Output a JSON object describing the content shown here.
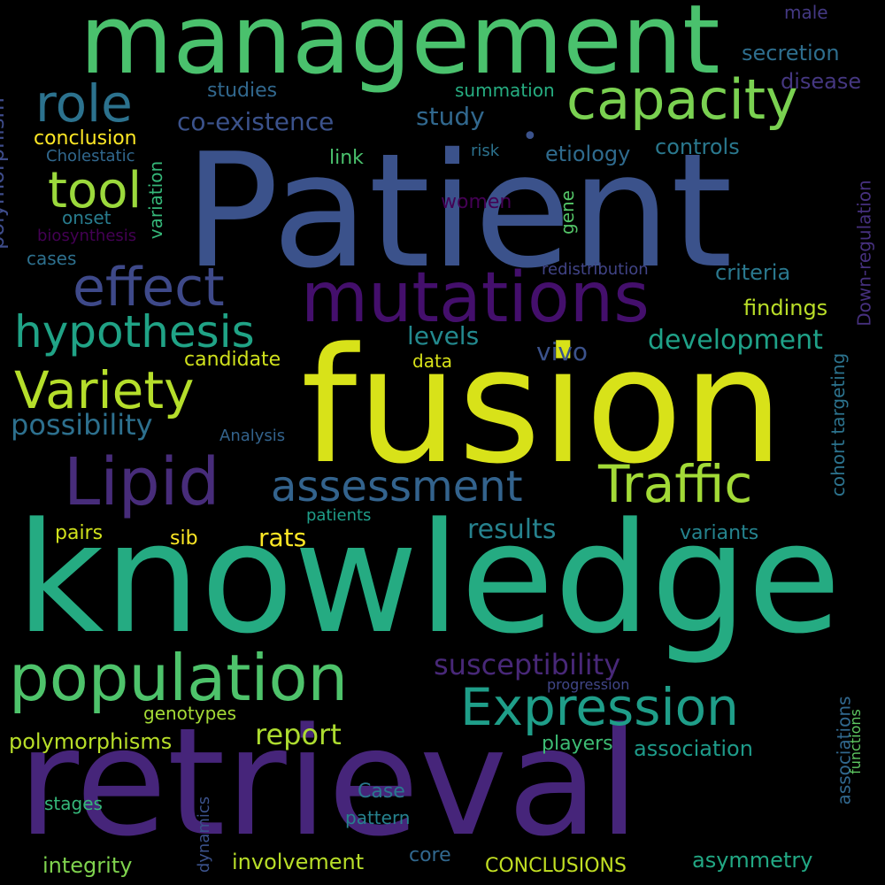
{
  "background": "#000000",
  "words": [
    {
      "key": "patient",
      "text": "Patient",
      "color": "#3b528b"
    },
    {
      "key": "knowledge",
      "text": "knowledge",
      "color": "#25ab82"
    },
    {
      "key": "fusion",
      "text": "fusion",
      "color": "#d8e219"
    },
    {
      "key": "retrieval",
      "text": "retrieval",
      "color": "#46257a"
    },
    {
      "key": "management",
      "text": "management",
      "color": "#4ac16d"
    },
    {
      "key": "mutations",
      "text": "mutations",
      "color": "#440f6c"
    },
    {
      "key": "population",
      "text": "population",
      "color": "#4ec36b"
    },
    {
      "key": "lipid",
      "text": "Lipid",
      "color": "#472c7a"
    },
    {
      "key": "traffic",
      "text": "Traffic",
      "color": "#a2da37"
    },
    {
      "key": "expression",
      "text": "Expression",
      "color": "#1f9e89"
    },
    {
      "key": "capacity",
      "text": "capacity",
      "color": "#7ad151"
    },
    {
      "key": "effect",
      "text": "effect",
      "color": "#3e4989"
    },
    {
      "key": "variety",
      "text": "Variety",
      "color": "#b5de2b"
    },
    {
      "key": "role",
      "text": "role",
      "color": "#2c728e"
    },
    {
      "key": "tool",
      "text": "tool",
      "color": "#9bd93c"
    },
    {
      "key": "hypothesis",
      "text": "hypothesis",
      "color": "#20a386"
    },
    {
      "key": "assessment",
      "text": "assessment",
      "color": "#33638d"
    },
    {
      "key": "susceptibility",
      "text": "susceptibility",
      "color": "#482878"
    },
    {
      "key": "possibility",
      "text": "possibility",
      "color": "#2d708e"
    },
    {
      "key": "development",
      "text": "development",
      "color": "#1fa188"
    },
    {
      "key": "results",
      "text": "results",
      "color": "#26828e"
    },
    {
      "key": "report",
      "text": "report",
      "color": "#addc30"
    },
    {
      "key": "co-existence",
      "text": "co-existence",
      "color": "#3b528b"
    },
    {
      "key": "study",
      "text": "study",
      "color": "#31688e"
    },
    {
      "key": "rats",
      "text": "rats",
      "color": "#fde725"
    },
    {
      "key": "levels",
      "text": "levels",
      "color": "#23898e"
    },
    {
      "key": "vivo",
      "text": "vivo",
      "color": "#3b528b"
    },
    {
      "key": "polymorphisms",
      "text": "polymorphisms",
      "color": "#b8de29"
    },
    {
      "key": "findings",
      "text": "findings",
      "color": "#bade28"
    },
    {
      "key": "criteria",
      "text": "criteria",
      "color": "#2a788e"
    },
    {
      "key": "association",
      "text": "association",
      "color": "#1e9b8a"
    },
    {
      "key": "asymmetry",
      "text": "asymmetry",
      "color": "#22a884"
    },
    {
      "key": "integrity",
      "text": "integrity",
      "color": "#7fd34e"
    },
    {
      "key": "involvement",
      "text": "involvement",
      "color": "#b8de29"
    },
    {
      "key": "conclusions",
      "text": "CONCLUSIONS",
      "color": "#c2df23"
    },
    {
      "key": "variants",
      "text": "variants",
      "color": "#25838e"
    },
    {
      "key": "candidate",
      "text": "candidate",
      "color": "#d0e11c"
    },
    {
      "key": "conclusion",
      "text": "conclusion",
      "color": "#fde725"
    },
    {
      "key": "etiology",
      "text": "etiology",
      "color": "#2f6b8e"
    },
    {
      "key": "controls",
      "text": "controls",
      "color": "#2a788e"
    },
    {
      "key": "secretion",
      "text": "secretion",
      "color": "#2e6e8e"
    },
    {
      "key": "disease",
      "text": "disease",
      "color": "#453781"
    },
    {
      "key": "players",
      "text": "players",
      "color": "#3dbc74"
    },
    {
      "key": "core",
      "text": "core",
      "color": "#31688e"
    },
    {
      "key": "case",
      "text": "Case",
      "color": "#2a788e"
    },
    {
      "key": "pattern",
      "text": "pattern",
      "color": "#26828e"
    },
    {
      "key": "pairs",
      "text": "pairs",
      "color": "#d0e11c"
    },
    {
      "key": "sib",
      "text": "sib",
      "color": "#fde725"
    },
    {
      "key": "data",
      "text": "data",
      "color": "#d8e219"
    },
    {
      "key": "link",
      "text": "link",
      "color": "#4ac16d"
    },
    {
      "key": "studies",
      "text": "studies",
      "color": "#31688e"
    },
    {
      "key": "summation",
      "text": "summation",
      "color": "#26ad81"
    },
    {
      "key": "male",
      "text": "male",
      "color": "#443983"
    },
    {
      "key": "genotypes",
      "text": "genotypes",
      "color": "#a5db36"
    },
    {
      "key": "stages",
      "text": "stages",
      "color": "#35b779"
    },
    {
      "key": "onset",
      "text": "onset",
      "color": "#287c8e"
    },
    {
      "key": "cases",
      "text": "cases",
      "color": "#2d708e"
    },
    {
      "key": "women",
      "text": "women",
      "color": "#440154"
    },
    {
      "key": "risk",
      "text": "risk",
      "color": "#2c728e"
    },
    {
      "key": "cholestatic",
      "text": "Cholestatic",
      "color": "#31688e"
    },
    {
      "key": "biosynthesis",
      "text": "biosynthesis",
      "color": "#440154"
    },
    {
      "key": "redistribution",
      "text": "redistribution",
      "color": "#414487"
    },
    {
      "key": "analysis",
      "text": "Analysis",
      "color": "#33638d"
    },
    {
      "key": "patients",
      "text": "patients",
      "color": "#1f9e89"
    },
    {
      "key": "progression",
      "text": "progression",
      "color": "#404688"
    },
    {
      "key": "dot1",
      "text": "•",
      "color": "#3b528b"
    },
    {
      "key": "polymorphism",
      "text": "polymorphism",
      "color": "#3e4c8a"
    },
    {
      "key": "variation",
      "text": "variation",
      "color": "#35b779"
    },
    {
      "key": "gene",
      "text": "gene",
      "color": "#54c568"
    },
    {
      "key": "down-regulation",
      "text": "Down-regulation",
      "color": "#46307e"
    },
    {
      "key": "cohort-targeting",
      "text": "cohort targeting",
      "color": "#2c738e"
    },
    {
      "key": "associations",
      "text": "associations",
      "color": "#31688e"
    },
    {
      "key": "functions",
      "text": "functions",
      "color": "#5ec962"
    },
    {
      "key": "dynamics",
      "text": "dynamics",
      "color": "#3b528b"
    }
  ]
}
